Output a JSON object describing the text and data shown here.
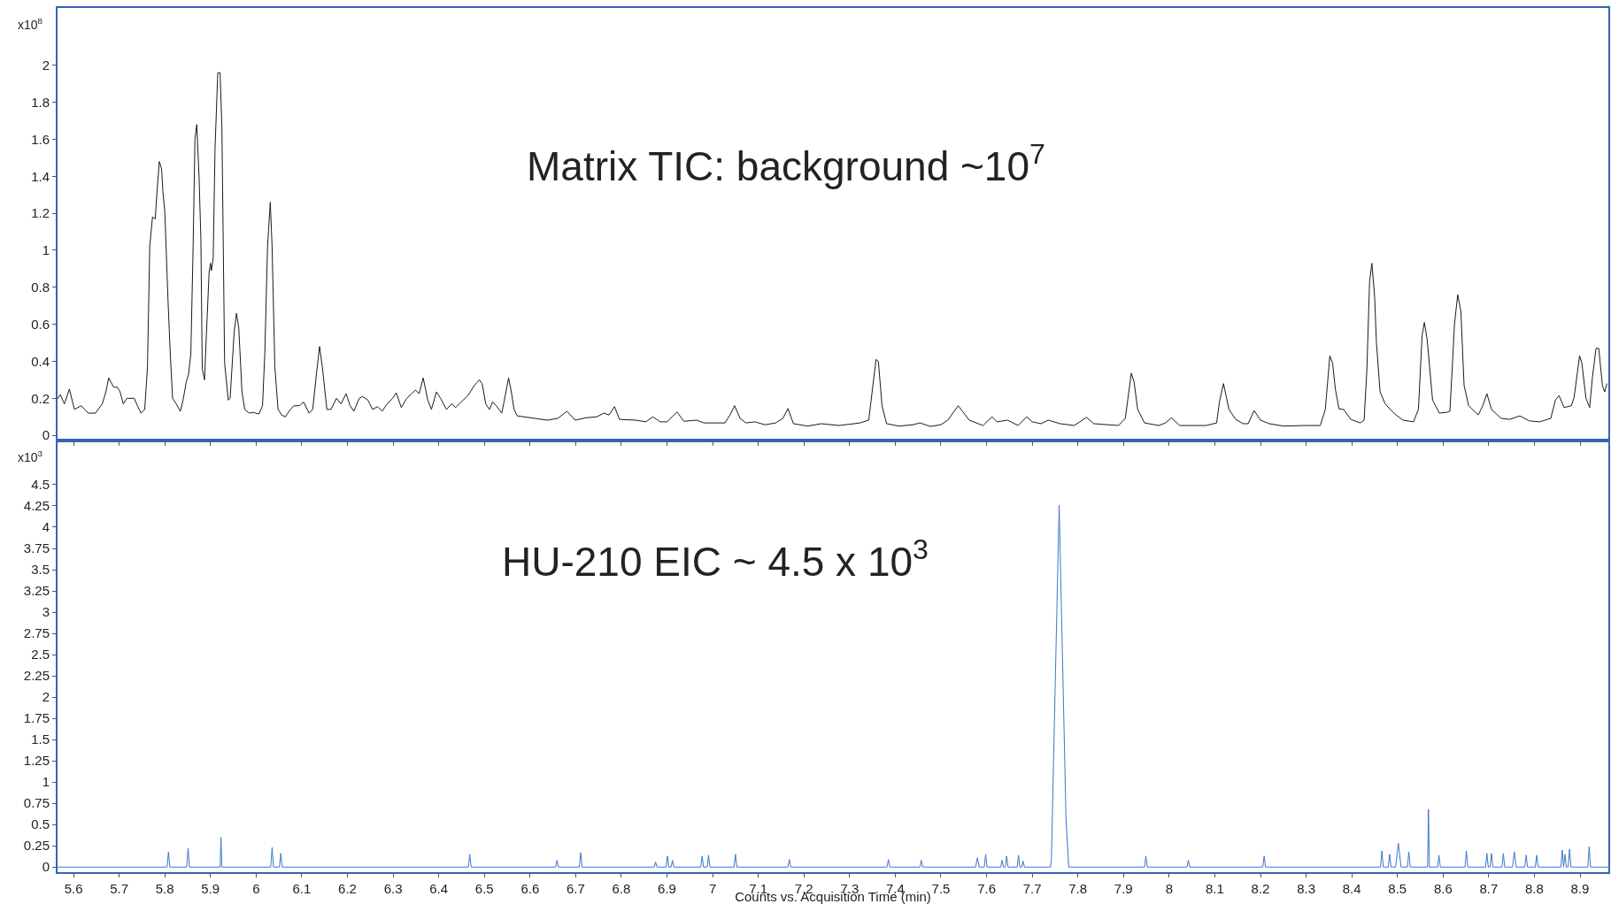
{
  "chart_data": [
    {
      "type": "line",
      "ylabel": "x10$^{8}$",
      "annotations": [
        "Matrix TIC: background ~10$^{7}$"
      ],
      "tick_labels": "y",
      "xlim": [
        5.565,
        8.962
      ],
      "xticks": [
        5.6,
        5.7,
        5.8,
        5.9,
        6,
        6.1,
        6.2,
        6.3,
        6.4,
        6.5,
        6.6,
        6.7,
        6.8,
        6.9,
        7,
        7.1,
        7.2,
        7.3,
        7.4,
        7.5,
        7.6,
        7.7,
        7.8,
        7.9,
        8,
        8.1,
        8.2,
        8.3,
        8.4,
        8.5,
        8.6,
        8.7,
        8.8,
        8.9
      ],
      "ylim": [
        -0.028,
        2.31
      ],
      "yticks": [
        0,
        0.2,
        0.4,
        0.6,
        0.8,
        1,
        1.2,
        1.4,
        1.6,
        1.8,
        2
      ],
      "series": [
        {
          "color": "#1a1a1a",
          "x": [
            5.565,
            5.571,
            5.58,
            5.591,
            5.602,
            5.617,
            5.632,
            5.648,
            5.663,
            5.671,
            5.677,
            5.688,
            5.696,
            5.702,
            5.709,
            5.717,
            5.733,
            5.74,
            5.748,
            5.756,
            5.762,
            5.767,
            5.773,
            5.779,
            5.783,
            5.788,
            5.793,
            5.796,
            5.8,
            5.807,
            5.812,
            5.817,
            5.825,
            5.834,
            5.84,
            5.847,
            5.852,
            5.857,
            5.862,
            5.866,
            5.87,
            5.875,
            5.879,
            5.882,
            5.887,
            5.891,
            5.897,
            5.9,
            5.902,
            5.906,
            5.91,
            5.916,
            5.921,
            5.925,
            5.931,
            5.939,
            5.943,
            5.952,
            5.957,
            5.962,
            5.969,
            5.975,
            5.985,
            5.994,
            6.006,
            6.014,
            6.019,
            6.025,
            6.031,
            6.035,
            6.041,
            6.048,
            6.056,
            6.064,
            6.075,
            6.083,
            6.095,
            6.104,
            6.116,
            6.124,
            6.132,
            6.139,
            6.145,
            6.155,
            6.164,
            6.176,
            6.186,
            6.197,
            6.206,
            6.214,
            6.226,
            6.233,
            6.245,
            6.255,
            6.266,
            6.276,
            6.287,
            6.299,
            6.307,
            6.318,
            6.33,
            6.341,
            6.349,
            6.357,
            6.366,
            6.376,
            6.384,
            6.395,
            6.404,
            6.417,
            6.428,
            6.437,
            6.449,
            6.464,
            6.478,
            6.489,
            6.495,
            6.503,
            6.511,
            6.518,
            6.526,
            6.538,
            6.543,
            6.553,
            6.559,
            6.565,
            6.572,
            6.638,
            6.661,
            6.681,
            6.699,
            6.723,
            6.746,
            6.762,
            6.773,
            6.785,
            6.796,
            6.831,
            6.854,
            6.869,
            6.885,
            6.9,
            6.922,
            6.937,
            6.965,
            6.981,
            7.027,
            7.038,
            7.048,
            7.06,
            7.073,
            7.092,
            7.115,
            7.138,
            7.154,
            7.165,
            7.177,
            7.208,
            7.238,
            7.277,
            7.323,
            7.342,
            7.35,
            7.358,
            7.363,
            7.371,
            7.381,
            7.408,
            7.438,
            7.454,
            7.477,
            7.5,
            7.515,
            7.538,
            7.562,
            7.592,
            7.612,
            7.623,
            7.646,
            7.669,
            7.688,
            7.7,
            7.719,
            7.735,
            7.761,
            7.792,
            7.819,
            7.835,
            7.889,
            7.904,
            7.917,
            7.923,
            7.931,
            7.946,
            7.977,
            7.992,
            8.005,
            8.023,
            8.05,
            8.081,
            8.104,
            8.11,
            8.119,
            8.131,
            8.146,
            8.162,
            8.173,
            8.186,
            8.2,
            8.219,
            8.25,
            8.296,
            8.331,
            8.342,
            8.352,
            8.358,
            8.364,
            8.372,
            8.382,
            8.398,
            8.419,
            8.427,
            8.433,
            8.439,
            8.444,
            8.45,
            8.454,
            8.462,
            8.473,
            8.492,
            8.512,
            8.535,
            8.546,
            8.554,
            8.559,
            8.565,
            8.577,
            8.592,
            8.608,
            8.615,
            8.625,
            8.632,
            8.639,
            8.646,
            8.656,
            8.677,
            8.687,
            8.696,
            8.706,
            8.727,
            8.746,
            8.768,
            8.789,
            8.812,
            8.836,
            8.846,
            8.854,
            8.865,
            8.881,
            8.887,
            8.899,
            8.904,
            8.913,
            8.921,
            8.927,
            8.935,
            8.941,
            8.949,
            8.954,
            8.959
          ],
          "values": [
            0.197,
            0.22,
            0.17,
            0.25,
            0.14,
            0.16,
            0.12,
            0.12,
            0.17,
            0.235,
            0.31,
            0.26,
            0.26,
            0.235,
            0.17,
            0.2,
            0.2,
            0.16,
            0.12,
            0.14,
            0.37,
            1.02,
            1.18,
            1.17,
            1.32,
            1.48,
            1.44,
            1.31,
            1.21,
            0.73,
            0.44,
            0.2,
            0.17,
            0.13,
            0.19,
            0.29,
            0.33,
            0.44,
            1.02,
            1.6,
            1.68,
            1.4,
            1.06,
            0.36,
            0.3,
            0.54,
            0.88,
            0.93,
            0.89,
            0.96,
            1.55,
            1.96,
            1.96,
            1.67,
            0.39,
            0.19,
            0.2,
            0.56,
            0.66,
            0.58,
            0.235,
            0.14,
            0.12,
            0.124,
            0.115,
            0.16,
            0.44,
            1.02,
            1.26,
            1.02,
            0.37,
            0.14,
            0.11,
            0.1,
            0.14,
            0.16,
            0.16,
            0.18,
            0.12,
            0.14,
            0.33,
            0.48,
            0.37,
            0.14,
            0.14,
            0.2,
            0.17,
            0.225,
            0.16,
            0.13,
            0.2,
            0.21,
            0.19,
            0.14,
            0.155,
            0.13,
            0.17,
            0.2,
            0.23,
            0.15,
            0.2,
            0.225,
            0.245,
            0.225,
            0.31,
            0.19,
            0.14,
            0.235,
            0.2,
            0.14,
            0.17,
            0.15,
            0.18,
            0.215,
            0.27,
            0.3,
            0.28,
            0.17,
            0.14,
            0.18,
            0.16,
            0.12,
            0.18,
            0.31,
            0.235,
            0.14,
            0.105,
            0.082,
            0.092,
            0.13,
            0.082,
            0.095,
            0.1,
            0.12,
            0.11,
            0.155,
            0.086,
            0.082,
            0.073,
            0.1,
            0.073,
            0.073,
            0.126,
            0.076,
            0.082,
            0.067,
            0.067,
            0.11,
            0.16,
            0.092,
            0.067,
            0.073,
            0.057,
            0.067,
            0.092,
            0.145,
            0.063,
            0.05,
            0.063,
            0.053,
            0.067,
            0.082,
            0.25,
            0.41,
            0.4,
            0.16,
            0.063,
            0.05,
            0.057,
            0.067,
            0.048,
            0.057,
            0.082,
            0.16,
            0.082,
            0.053,
            0.1,
            0.073,
            0.082,
            0.053,
            0.1,
            0.073,
            0.063,
            0.082,
            0.063,
            0.053,
            0.097,
            0.063,
            0.053,
            0.092,
            0.336,
            0.29,
            0.14,
            0.067,
            0.053,
            0.067,
            0.095,
            0.053,
            0.053,
            0.053,
            0.067,
            0.18,
            0.28,
            0.14,
            0.086,
            0.063,
            0.063,
            0.134,
            0.082,
            0.063,
            0.05,
            0.053,
            0.053,
            0.14,
            0.43,
            0.39,
            0.25,
            0.143,
            0.14,
            0.086,
            0.067,
            0.082,
            0.35,
            0.83,
            0.93,
            0.75,
            0.5,
            0.235,
            0.17,
            0.12,
            0.082,
            0.073,
            0.14,
            0.54,
            0.61,
            0.52,
            0.19,
            0.12,
            0.124,
            0.13,
            0.6,
            0.76,
            0.67,
            0.27,
            0.16,
            0.11,
            0.16,
            0.225,
            0.14,
            0.092,
            0.086,
            0.105,
            0.078,
            0.073,
            0.092,
            0.19,
            0.215,
            0.15,
            0.16,
            0.205,
            0.43,
            0.39,
            0.2,
            0.15,
            0.31,
            0.47,
            0.47,
            0.27,
            0.235,
            0.28
          ]
        }
      ]
    },
    {
      "type": "line",
      "ylabel": "x10$^{3}$",
      "xlabel": "Counts vs. Acquisition Time (min)",
      "annotations": [
        "HU-210 EIC ~ 4.5 x 10$^{3}$"
      ],
      "xlim": [
        5.565,
        8.962
      ],
      "xticks": [
        5.6,
        5.7,
        5.8,
        5.9,
        6,
        6.1,
        6.2,
        6.3,
        6.4,
        6.5,
        6.6,
        6.7,
        6.8,
        6.9,
        7,
        7.1,
        7.2,
        7.3,
        7.4,
        7.5,
        7.6,
        7.7,
        7.8,
        7.9,
        8,
        8.1,
        8.2,
        8.3,
        8.4,
        8.5,
        8.6,
        8.7,
        8.8,
        8.9
      ],
      "ylim": [
        -0.06,
        5.02
      ],
      "yticks": [
        0,
        0.25,
        0.5,
        0.75,
        1,
        1.25,
        1.5,
        1.75,
        2,
        2.25,
        2.5,
        2.75,
        3,
        3.25,
        3.5,
        3.75,
        4,
        4.25,
        4.5
      ],
      "series": [
        {
          "color": "#3a78c9",
          "x": [
            5.565,
            5.805,
            5.808,
            5.811,
            5.848,
            5.851,
            5.854,
            5.921,
            5.923,
            5.925,
            6.032,
            6.035,
            6.038,
            6.051,
            6.054,
            6.057,
            6.465,
            6.468,
            6.471,
            6.656,
            6.659,
            6.662,
            6.708,
            6.711,
            6.714,
            6.872,
            6.875,
            6.878,
            6.898,
            6.901,
            6.904,
            6.909,
            6.912,
            6.915,
            6.974,
            6.977,
            6.98,
            6.988,
            6.991,
            6.994,
            7.047,
            7.05,
            7.053,
            7.165,
            7.168,
            7.171,
            7.382,
            7.385,
            7.388,
            7.454,
            7.457,
            7.46,
            7.576,
            7.58,
            7.584,
            7.595,
            7.598,
            7.601,
            7.631,
            7.634,
            7.637,
            7.641,
            7.644,
            7.647,
            7.667,
            7.67,
            7.673,
            7.677,
            7.68,
            7.683,
            7.74,
            7.742,
            7.759,
            7.774,
            7.78,
            7.946,
            7.949,
            7.952,
            8.039,
            8.042,
            8.045,
            8.205,
            8.208,
            8.211,
            8.463,
            8.466,
            8.469,
            8.48,
            8.483,
            8.486,
            8.496,
            8.502,
            8.508,
            8.522,
            8.525,
            8.528,
            8.566,
            8.568,
            8.57,
            8.588,
            8.591,
            8.594,
            8.648,
            8.651,
            8.654,
            8.693,
            8.696,
            8.699,
            8.703,
            8.706,
            8.709,
            8.729,
            8.732,
            8.735,
            8.752,
            8.756,
            8.76,
            8.779,
            8.782,
            8.785,
            8.802,
            8.805,
            8.808,
            8.858,
            8.861,
            8.864,
            8.867,
            8.87,
            8.874,
            8.877,
            8.88,
            8.917,
            8.92,
            8.923,
            8.962
          ],
          "values": [
            0,
            0,
            0.18,
            0,
            0,
            0.22,
            0,
            0,
            0.35,
            0,
            0,
            0.23,
            0,
            0,
            0.16,
            0,
            0,
            0.15,
            0,
            0,
            0.08,
            0,
            0,
            0.17,
            0,
            0,
            0.06,
            0,
            0,
            0.13,
            0,
            0,
            0.08,
            0,
            0,
            0.13,
            0,
            0,
            0.14,
            0,
            0,
            0.15,
            0,
            0,
            0.09,
            0,
            0,
            0.09,
            0,
            0,
            0.08,
            0,
            0,
            0.11,
            0,
            0,
            0.15,
            0,
            0,
            0.08,
            0,
            0,
            0.13,
            0,
            0,
            0.14,
            0,
            0,
            0.07,
            0,
            0,
            0.08,
            4.26,
            0.58,
            0,
            0,
            0.13,
            0,
            0,
            0.08,
            0,
            0,
            0.13,
            0,
            0,
            0.19,
            0,
            0,
            0.15,
            0,
            0,
            0.28,
            0,
            0,
            0.18,
            0,
            0,
            0.68,
            0,
            0,
            0.14,
            0,
            0,
            0.19,
            0,
            0,
            0.16,
            0,
            0,
            0.16,
            0,
            0,
            0.16,
            0,
            0,
            0.18,
            0,
            0,
            0.14,
            0,
            0,
            0.14,
            0,
            0,
            0.2,
            0,
            0.15,
            0,
            0,
            0.21,
            0,
            0,
            0.24,
            0,
            0
          ]
        }
      ]
    }
  ]
}
